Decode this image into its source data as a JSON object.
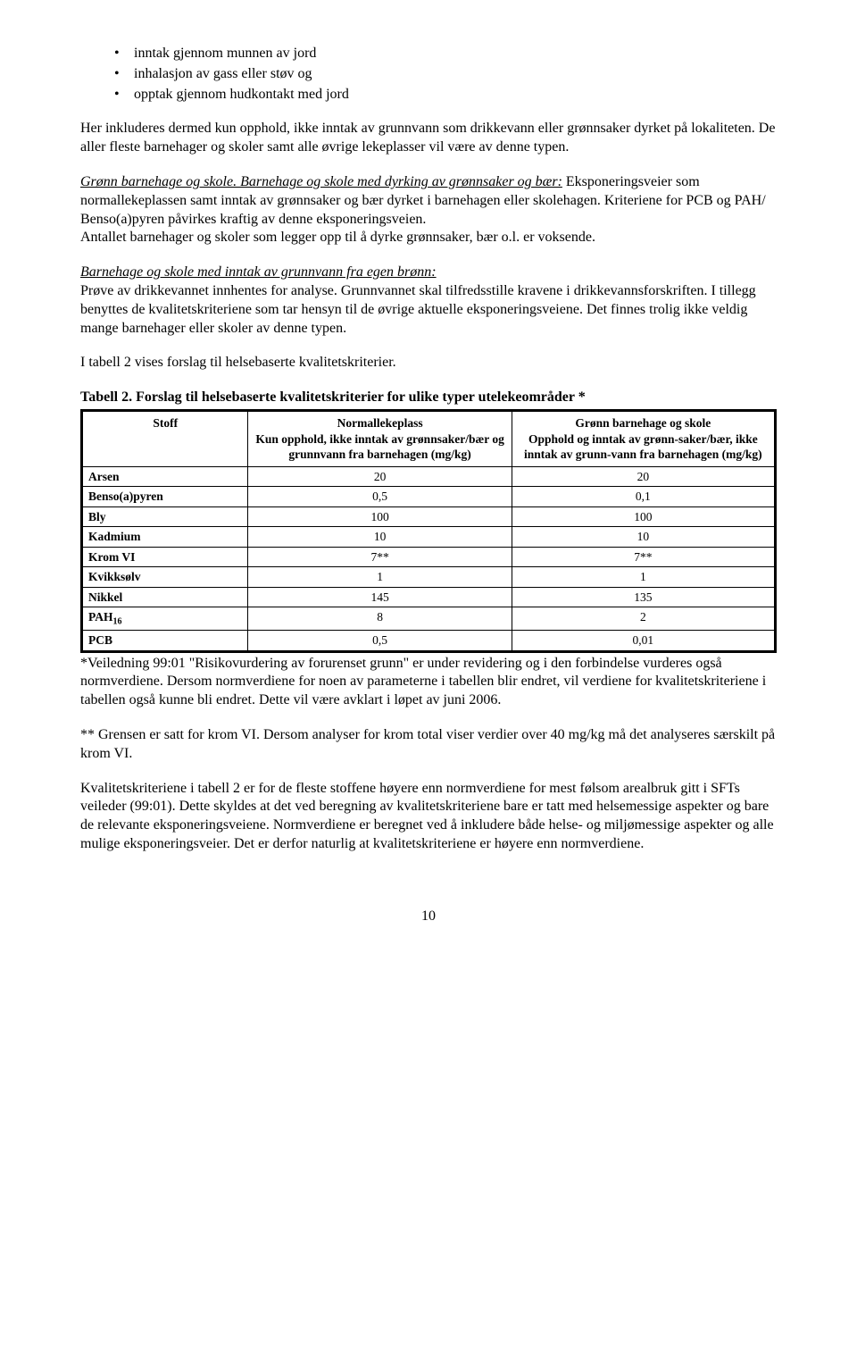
{
  "bullets": [
    "inntak gjennom munnen av jord",
    "inhalasjon av gass eller støv og",
    "opptak gjennom hudkontakt med jord"
  ],
  "p1": "Her inkluderes dermed kun opphold, ikke inntak av grunnvann som drikkevann eller grønnsaker dyrket på lokaliteten. De aller fleste barnehager og skoler samt alle øvrige lekeplasser vil være av denne typen.",
  "p2_lead": "Grønn barnehage og skole. Barnehage og skole med dyrking av grønnsaker og bær:",
  "p2_rest": " Eksponeringsveier som normallekeplassen samt inntak av grønnsaker og bær dyrket i barnehagen eller skolehagen. Kriteriene for PCB og PAH/ Benso(a)pyren påvirkes kraftig av denne eksponeringsveien.",
  "p2_line3": "Antallet barnehager og skoler som legger opp til å dyrke grønnsaker, bær o.l. er voksende.",
  "p3_lead": "Barnehage og skole med inntak av grunnvann fra egen brønn:",
  "p3_rest": "Prøve av drikkevannet innhentes for analyse. Grunnvannet skal tilfredsstille kravene i drikkevannsforskriften. I tillegg benyttes de kvalitetskriteriene som tar hensyn til de øvrige aktuelle eksponeringsveiene. Det finnes trolig ikke veldig mange barnehager eller skoler av denne typen.",
  "p4": "I tabell 2 vises forslag til helsebaserte kvalitetskriterier.",
  "table_title": "Tabell 2. Forslag til helsebaserte kvalitetskriterier for ulike typer utelekeområder *",
  "table": {
    "col_widths": [
      "24%",
      "38%",
      "38%"
    ],
    "headers": {
      "stoff": "Stoff",
      "col1": "Normallekeplass\nKun opphold, ikke inntak av grønnsaker/bær og grunnvann fra barnehagen (mg/kg)",
      "col2": "Grønn barnehage og skole\nOpphold og inntak av grønn-saker/bær, ikke inntak av grunn-vann fra barnehagen (mg/kg)"
    },
    "rows": [
      {
        "name": "Arsen",
        "v1": "20",
        "v2": "20"
      },
      {
        "name": "Benso(a)pyren",
        "v1": "0,5",
        "v2": "0,1"
      },
      {
        "name": "Bly",
        "v1": "100",
        "v2": "100"
      },
      {
        "name": "Kadmium",
        "v1": "10",
        "v2": "10"
      },
      {
        "name": "Krom VI",
        "v1": "7**",
        "v2": "7**"
      },
      {
        "name": "Kvikksølv",
        "v1": "1",
        "v2": "1"
      },
      {
        "name": "Nikkel",
        "v1": "145",
        "v2": "135"
      },
      {
        "name": "PAH₁₆",
        "v1": "8",
        "v2": "2"
      },
      {
        "name": "PCB",
        "v1": "0,5",
        "v2": "0,01"
      }
    ]
  },
  "p5": "*Veiledning 99:01 \"Risikovurdering av forurenset grunn\" er under revidering og i den forbindelse vurderes også normverdiene. Dersom normverdiene for noen av parameterne i tabellen blir endret, vil verdiene for kvalitetskriteriene i tabellen også kunne bli endret. Dette vil være avklart i løpet av juni 2006.",
  "p6": "** Grensen er satt for krom VI. Dersom analyser for krom total viser verdier over 40 mg/kg må det analyseres særskilt på krom VI.",
  "p7": "Kvalitetskriteriene i tabell 2 er for de fleste stoffene høyere enn normverdiene for mest følsom arealbruk gitt i SFTs veileder (99:01). Dette skyldes at det ved beregning av kvalitetskriteriene bare er tatt med helsemessige aspekter og bare de relevante eksponeringsveiene. Normverdiene er beregnet ved å inkludere både helse- og miljømessige aspekter og alle mulige eksponeringsveier. Det er derfor naturlig at kvalitetskriteriene er høyere enn normverdiene.",
  "pagenum": "10"
}
